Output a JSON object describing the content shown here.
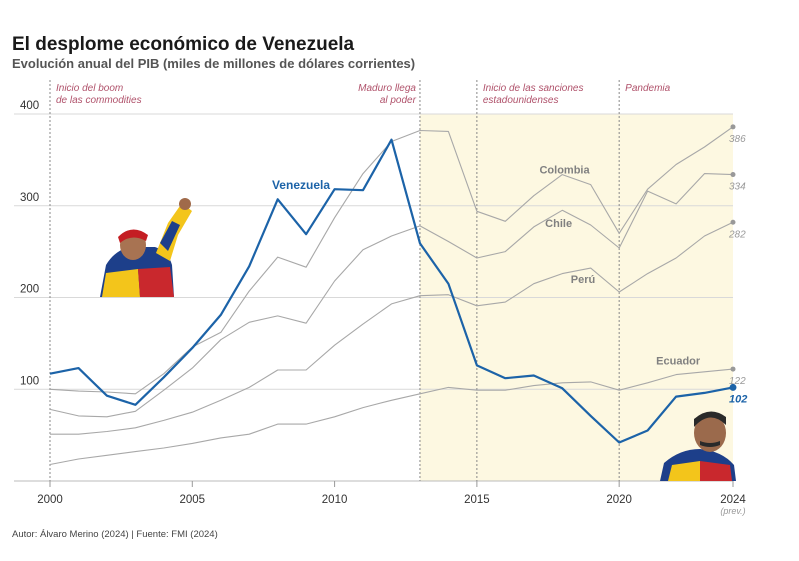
{
  "title": "El desplome económico de Venezuela",
  "subtitle": "Evolución anual del PIB (miles de millones de dólares corrientes)",
  "footer": "Autor: Álvaro Merino (2024) | Fuente: FMI (2024)",
  "colors": {
    "venezuela": "#1c63a8",
    "others": "#a8a8a8",
    "highlight": "#fdf8e1",
    "annotation": "#b0526b",
    "grid": "#d9d9d9"
  },
  "chart_data": {
    "type": "line",
    "title": "El desplome económico de Venezuela",
    "xlabel": "",
    "ylabel": "",
    "xlim": [
      2000,
      2024
    ],
    "ylim": [
      0,
      400
    ],
    "yticks": [
      100,
      200,
      300,
      400
    ],
    "xticks": [
      2000,
      2005,
      2010,
      2015,
      2020,
      2024
    ],
    "xtick_labels": [
      "2000",
      "2005",
      "2010",
      "2015",
      "2020",
      "2024"
    ],
    "xtick_sublabel": {
      "x": 2024,
      "text": "(prev.)"
    },
    "x": [
      2000,
      2001,
      2002,
      2003,
      2004,
      2005,
      2006,
      2007,
      2008,
      2009,
      2010,
      2011,
      2012,
      2013,
      2014,
      2015,
      2016,
      2017,
      2018,
      2019,
      2020,
      2021,
      2022,
      2023,
      2024
    ],
    "highlight_range": [
      2013,
      2024
    ],
    "series": [
      {
        "name": "Venezuela",
        "label": "Venezuela",
        "end_label": "102",
        "values": [
          117,
          123,
          93,
          83,
          113,
          145,
          181,
          234,
          307,
          269,
          318,
          317,
          372,
          259,
          215,
          126,
          112,
          115,
          101,
          71,
          42,
          55,
          92,
          96,
          102
        ]
      },
      {
        "name": "Colombia",
        "label": "Colombia",
        "end_label": "386",
        "values": [
          100,
          98,
          97,
          95,
          117,
          146,
          162,
          207,
          244,
          233,
          287,
          335,
          370,
          382,
          381,
          294,
          283,
          311,
          334,
          323,
          270,
          318,
          345,
          364,
          386
        ]
      },
      {
        "name": "Chile",
        "label": "Chile",
        "end_label": "334",
        "values": [
          78,
          71,
          70,
          76,
          99,
          123,
          154,
          173,
          180,
          172,
          218,
          252,
          267,
          278,
          261,
          243,
          250,
          277,
          295,
          279,
          254,
          316,
          302,
          335,
          334
        ]
      },
      {
        "name": "Perú",
        "label": "Perú",
        "end_label": "282",
        "values": [
          51,
          51,
          54,
          58,
          66,
          75,
          88,
          102,
          121,
          121,
          148,
          171,
          193,
          202,
          203,
          191,
          195,
          215,
          226,
          232,
          206,
          226,
          243,
          267,
          282
        ]
      },
      {
        "name": "Ecuador",
        "label": "Ecuador",
        "end_label": "122",
        "values": [
          18,
          24,
          28,
          32,
          36,
          41,
          47,
          51,
          62,
          62,
          70,
          80,
          88,
          95,
          102,
          99,
          99,
          104,
          107,
          108,
          99,
          107,
          116,
          119,
          122
        ]
      }
    ],
    "annotations": [
      {
        "x": 2000,
        "lines": [
          "Inicio del boom",
          "de las commodities"
        ],
        "align": "left"
      },
      {
        "x": 2013,
        "lines": [
          "Maduro llega",
          "al poder"
        ],
        "align": "right"
      },
      {
        "x": 2015,
        "lines": [
          "Inicio de las sanciones",
          "estadounidenses"
        ],
        "align": "left"
      },
      {
        "x": 2020,
        "lines": [
          "Pandemia"
        ],
        "align": "left"
      }
    ]
  }
}
